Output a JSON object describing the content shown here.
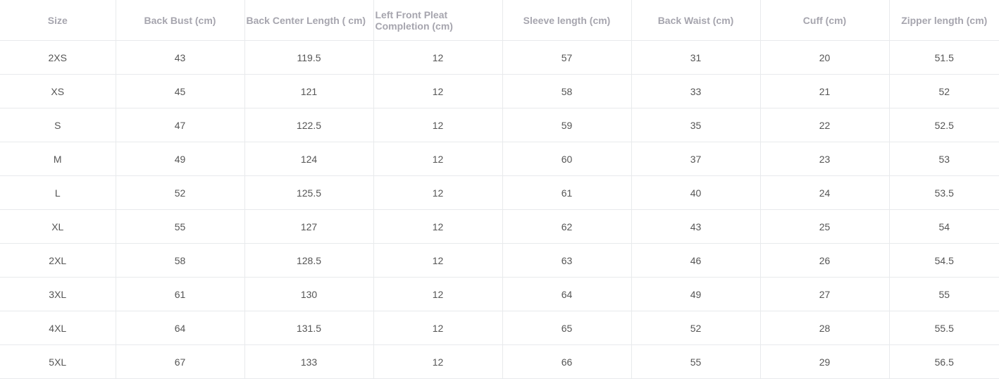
{
  "size_table": {
    "headers": [
      "Size",
      "Back Bust (cm)",
      "Back Center Length ( cm)",
      "Left Front Pleat Completion (cm)",
      "Sleeve length (cm)",
      "Back Waist (cm)",
      "Cuff (cm)",
      "Zipper length (cm)"
    ],
    "rows": [
      [
        "2XS",
        "43",
        "119.5",
        "12",
        "57",
        "31",
        "20",
        "51.5"
      ],
      [
        "XS",
        "45",
        "121",
        "12",
        "58",
        "33",
        "21",
        "52"
      ],
      [
        "S",
        "47",
        "122.5",
        "12",
        "59",
        "35",
        "22",
        "52.5"
      ],
      [
        "M",
        "49",
        "124",
        "12",
        "60",
        "37",
        "23",
        "53"
      ],
      [
        "L",
        "52",
        "125.5",
        "12",
        "61",
        "40",
        "24",
        "53.5"
      ],
      [
        "XL",
        "55",
        "127",
        "12",
        "62",
        "43",
        "25",
        "54"
      ],
      [
        "2XL",
        "58",
        "128.5",
        "12",
        "63",
        "46",
        "26",
        "54.5"
      ],
      [
        "3XL",
        "61",
        "130",
        "12",
        "64",
        "49",
        "27",
        "55"
      ],
      [
        "4XL",
        "64",
        "131.5",
        "12",
        "65",
        "52",
        "28",
        "55.5"
      ],
      [
        "5XL",
        "67",
        "133",
        "12",
        "66",
        "55",
        "29",
        "56.5"
      ]
    ]
  }
}
